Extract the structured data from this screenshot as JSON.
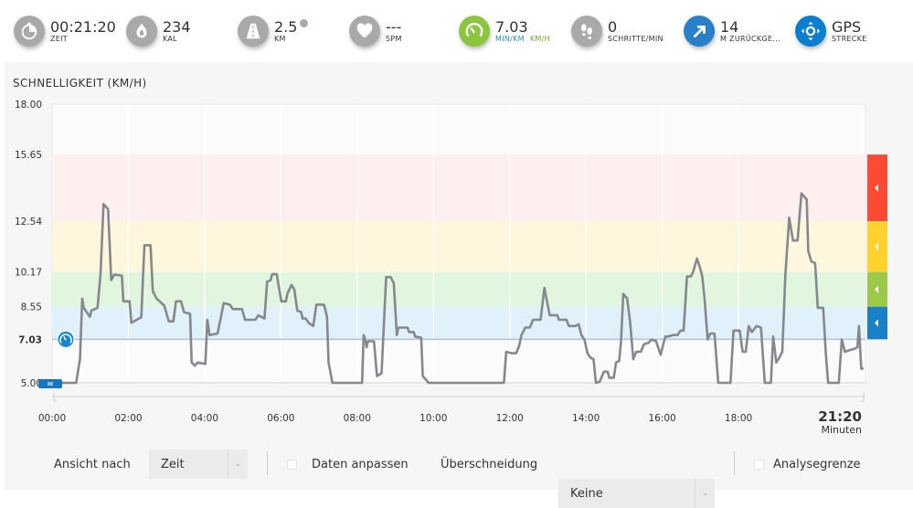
{
  "stats": [
    {
      "icon": "stopwatch-icon",
      "value": "00:21:20",
      "label": "ZEIT",
      "color": "#a9a9a9"
    },
    {
      "icon": "flame-icon",
      "value": "234",
      "label": "KAL",
      "color": "#a9a9a9"
    },
    {
      "icon": "road-icon",
      "value": "2.5",
      "label": "KM",
      "color": "#a9a9a9"
    },
    {
      "icon": "heart-icon",
      "value": "---",
      "label": "SPM",
      "color": "#a9a9a9"
    },
    {
      "icon": "speedometer-icon",
      "value": "7.03",
      "label": "MIN/KM",
      "label2": "KM/H",
      "color": "#8cc63f"
    },
    {
      "icon": "footprints-icon",
      "value": "0",
      "label": "SCHRITTE/MIN",
      "color": "#a9a9a9"
    },
    {
      "icon": "ascent-arrow-icon",
      "value": "14",
      "label": "M ZURÜCKGE...",
      "color": "#2a7fc9"
    },
    {
      "icon": "gps-icon",
      "value": "GPS",
      "label": "STRECKE",
      "color": "#0a7fd0"
    }
  ],
  "colors": {
    "min_km": "#1a8fd8",
    "km_h": "#6aaa1e",
    "line": "#85888c"
  },
  "chart_data": {
    "type": "line",
    "title": "SCHNELLIGKEIT (KM/H)",
    "ylim": [
      5,
      18
    ],
    "xlim": [
      0,
      21.33
    ],
    "yticks": [
      "18.00",
      "15.65",
      "12.54",
      "10.17",
      "8.55",
      "7.03",
      "5.00"
    ],
    "ytick_values": [
      18,
      15.65,
      12.54,
      10.17,
      8.55,
      7.03,
      5
    ],
    "xticks": [
      "00:00",
      "02:00",
      "04:00",
      "06:00",
      "08:00",
      "10:00",
      "12:00",
      "14:00",
      "16:00",
      "18:00"
    ],
    "xtick_values": [
      0,
      2,
      4,
      6,
      8,
      10,
      12,
      14,
      16,
      18
    ],
    "x_end_label": "21:20",
    "x_unit": "Minuten",
    "average": 7.03,
    "zones": [
      {
        "from": 12.54,
        "to": 15.65,
        "fill": "#ffefef",
        "bar": "#ff4a33"
      },
      {
        "from": 10.17,
        "to": 12.54,
        "fill": "#fff7dd",
        "bar": "#ffd22e"
      },
      {
        "from": 8.55,
        "to": 10.17,
        "fill": "#e1f5df",
        "bar": "#9cc94a"
      },
      {
        "from": 7.03,
        "to": 8.55,
        "fill": "#e0f1fb",
        "bar": "#1a80c8"
      }
    ],
    "x": [
      0,
      0.63,
      0.73,
      0.79,
      0.83,
      0.99,
      1.03,
      1.19,
      1.27,
      1.35,
      1.47,
      1.55,
      1.63,
      1.83,
      1.87,
      2.03,
      2.08,
      2.34,
      2.42,
      2.58,
      2.64,
      2.74,
      2.82,
      2.94,
      3.06,
      3.18,
      3.25,
      3.38,
      3.46,
      3.62,
      3.66,
      3.74,
      3.82,
      4.02,
      4.07,
      4.13,
      4.34,
      4.5,
      4.66,
      4.74,
      4.98,
      5.06,
      5.33,
      5.41,
      5.57,
      5.64,
      5.73,
      5.77,
      5.89,
      6.01,
      6.13,
      6.17,
      6.28,
      6.35,
      6.43,
      6.53,
      6.57,
      6.65,
      6.73,
      6.85,
      6.93,
      7.13,
      7.21,
      7.25,
      7.35,
      8.13,
      8.17,
      8.2,
      8.25,
      8.28,
      8.44,
      8.52,
      8.64,
      8.76,
      8.88,
      8.96,
      9.04,
      9.08,
      9.32,
      9.36,
      9.48,
      9.52,
      9.68,
      9.72,
      9.88,
      11.85,
      11.91,
      12.05,
      12.17,
      12.25,
      12.31,
      12.41,
      12.53,
      12.61,
      12.81,
      12.91,
      13.05,
      13.25,
      13.29,
      13.49,
      13.55,
      13.73,
      13.81,
      13.88,
      13.96,
      14.04,
      14.12,
      14.2,
      14.26,
      14.36,
      14.47,
      14.57,
      14.61,
      14.73,
      14.79,
      14.87,
      14.92,
      14.98,
      15.08,
      15.16,
      15.24,
      15.32,
      15.44,
      15.52,
      15.64,
      15.72,
      15.84,
      15.96,
      16.08,
      16.16,
      16.28,
      16.4,
      16.48,
      16.56,
      16.65,
      16.75,
      16.81,
      16.91,
      16.99,
      17.05,
      17.11,
      17.19,
      17.26,
      17.37,
      17.47,
      17.79,
      17.87,
      18.03,
      18.11,
      18.19,
      18.27,
      18.35,
      18.47,
      18.59,
      18.69,
      18.85,
      18.91,
      18.99,
      19.07,
      19.15,
      19.23,
      19.33,
      19.43,
      19.55,
      19.65,
      19.79,
      19.83,
      19.91,
      20.01,
      20.08,
      20.22,
      20.29,
      20.35,
      20.63,
      20.71,
      20.79,
      20.91,
      21.04,
      21.12,
      21.16,
      21.22,
      21.28
    ],
    "y": [
      5,
      5,
      6.1,
      8.93,
      8.5,
      8.08,
      8.37,
      8.5,
      10.07,
      13.34,
      13.1,
      9.79,
      10.05,
      10,
      8.8,
      8.8,
      7.8,
      8.06,
      11.42,
      11.42,
      9.29,
      8.93,
      8.8,
      8.6,
      7.87,
      7.87,
      8.8,
      8.8,
      8.3,
      8.22,
      5.95,
      5.8,
      5.95,
      5.88,
      7.94,
      7.23,
      7.3,
      8.72,
      8.65,
      8.44,
      8.44,
      7.94,
      7.94,
      8.15,
      8,
      9.72,
      9.79,
      10.07,
      10.07,
      8.8,
      8.8,
      9.15,
      9.57,
      9.36,
      8.37,
      8.3,
      8,
      8,
      7.79,
      7.65,
      8.65,
      8.65,
      8.08,
      5.95,
      5,
      5,
      7.23,
      7.1,
      6.66,
      6.94,
      6.94,
      5.31,
      5.45,
      9.93,
      9.93,
      9.65,
      7.23,
      7.58,
      7.58,
      7.37,
      7.37,
      7.16,
      7.1,
      5.31,
      5,
      5,
      6.45,
      6.38,
      6.38,
      6.73,
      7.23,
      7.58,
      7.58,
      7.94,
      7.94,
      9.43,
      8.15,
      8.15,
      7.94,
      7.94,
      7.65,
      7.65,
      7.73,
      7.23,
      7.02,
      6.38,
      6.17,
      6.1,
      5,
      5.05,
      5.52,
      5.52,
      5.24,
      5.24,
      5.95,
      6.02,
      6.94,
      9.15,
      8.93,
      7.79,
      6.1,
      6.45,
      6.45,
      6.8,
      6.87,
      7.02,
      6.94,
      6.31,
      7.16,
      7.16,
      7.23,
      7.23,
      7.44,
      7.44,
      9.96,
      9.96,
      10.17,
      10.8,
      10.38,
      9.96,
      8.93,
      7.02,
      7.3,
      7.3,
      5,
      5,
      7.44,
      7.44,
      6.45,
      6.45,
      7.65,
      7.37,
      7.65,
      7.58,
      5,
      5,
      7.16,
      5.95,
      6.17,
      6.45,
      10.07,
      12.7,
      11.64,
      11.64,
      13.84,
      13.55,
      11.14,
      10.66,
      10.59,
      8.5,
      8.5,
      6.38,
      5,
      5,
      7.02,
      6.45,
      6.52,
      6.59,
      6.66,
      7.65,
      5.66,
      5.66
    ]
  },
  "controls": {
    "view_label": "Ansicht nach",
    "view_value": "Zeit",
    "fit_label": "Daten anpassen",
    "overlap_label": "Überschneidung",
    "overlap_value": "Keine",
    "limit_label": "Analysegrenze"
  }
}
